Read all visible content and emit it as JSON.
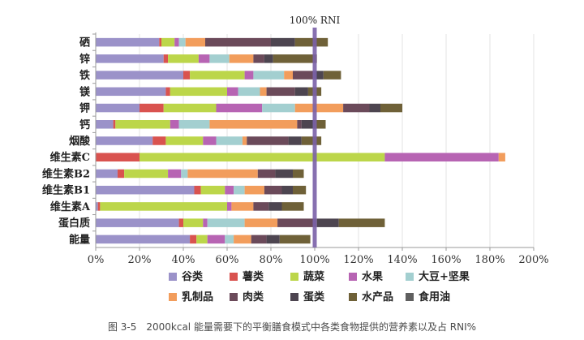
{
  "caption": "图 3-5　2000kcal 能量需要下的平衡膳食模式中各类食物提供的营养素以及占 RNI%",
  "chart_data": {
    "type": "bar",
    "orientation": "horizontal",
    "stacked": true,
    "categories": [
      "硒",
      "锌",
      "铁",
      "镁",
      "钾",
      "钙",
      "烟酸",
      "维生素C",
      "维生素B2",
      "维生素B1",
      "维生素A",
      "蛋白质",
      "能量"
    ],
    "x_ticks": [
      "0%",
      "20%",
      "40%",
      "60%",
      "80%",
      "100%",
      "120%",
      "140%",
      "160%",
      "180%",
      "200%"
    ],
    "xlim": [
      0,
      200
    ],
    "reference_line": {
      "value": 100,
      "label": "100% RNI",
      "color": "#7b62a8"
    },
    "legend_position": "bottom",
    "series": [
      {
        "name": "谷类",
        "color": "#9b92c9",
        "values": [
          29,
          31,
          40,
          32,
          20,
          8,
          26,
          0,
          10,
          45,
          1,
          38,
          43
        ]
      },
      {
        "name": "薯类",
        "color": "#d9534f",
        "values": [
          1,
          2,
          3,
          2,
          11,
          1,
          6,
          20,
          3,
          3,
          1,
          2,
          3
        ]
      },
      {
        "name": "蔬菜",
        "color": "#bcd64a",
        "values": [
          6,
          14,
          25,
          26,
          24,
          25,
          17,
          112,
          20,
          11,
          58,
          9,
          5
        ]
      },
      {
        "name": "水果",
        "color": "#b764b3",
        "values": [
          2,
          5,
          4,
          5,
          21,
          4,
          6,
          52,
          6,
          4,
          2,
          2,
          8
        ]
      },
      {
        "name": "大豆+坚果",
        "color": "#a3cfd0",
        "values": [
          3,
          9,
          14,
          10,
          15,
          14,
          12,
          0,
          3,
          5,
          0,
          17,
          4
        ]
      },
      {
        "name": "乳制品",
        "color": "#f29d5c",
        "values": [
          9,
          11,
          4,
          3,
          22,
          40,
          2,
          3,
          32,
          9,
          10,
          15,
          8
        ]
      },
      {
        "name": "肉类",
        "color": "#6b4a5a",
        "values": [
          30,
          5,
          10,
          13,
          12,
          2,
          19,
          0,
          8,
          8,
          7,
          18,
          7
        ]
      },
      {
        "name": "蛋类",
        "color": "#4d4550",
        "values": [
          11,
          4,
          4,
          6,
          5,
          6,
          6,
          0,
          8,
          5,
          6,
          10,
          6
        ]
      },
      {
        "name": "水产品",
        "color": "#6f6138",
        "values": [
          15,
          20,
          8,
          6,
          10,
          5,
          9,
          0,
          5,
          6,
          10,
          21,
          14
        ]
      },
      {
        "name": "食用油",
        "color": "#5f5f5f",
        "values": [
          0,
          0,
          0,
          0,
          0,
          0,
          0,
          0,
          0,
          0,
          0,
          0,
          0
        ]
      }
    ]
  }
}
